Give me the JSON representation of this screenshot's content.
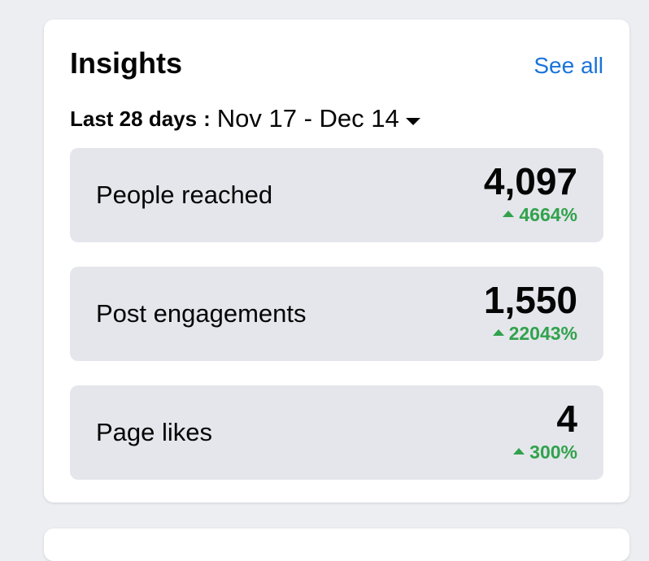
{
  "insights": {
    "title": "Insights",
    "see_all_label": "See all",
    "date": {
      "label": "Last 28 days",
      "separator": ":",
      "range": "Nov 17 - Dec 14",
      "icon": "caret-down-icon"
    },
    "metrics": [
      {
        "label": "People reached",
        "value": "4,097",
        "change": "4664%",
        "trend": "up"
      },
      {
        "label": "Post engagements",
        "value": "1,550",
        "change": "22043%",
        "trend": "up"
      },
      {
        "label": "Page likes",
        "value": "4",
        "change": "300%",
        "trend": "up"
      }
    ]
  },
  "colors": {
    "page_background": "#eceef2",
    "card_background": "#ffffff",
    "metric_background": "#e4e6eb",
    "link": "#1a73d9",
    "positive_change": "#31a24c",
    "text": "#050505"
  }
}
